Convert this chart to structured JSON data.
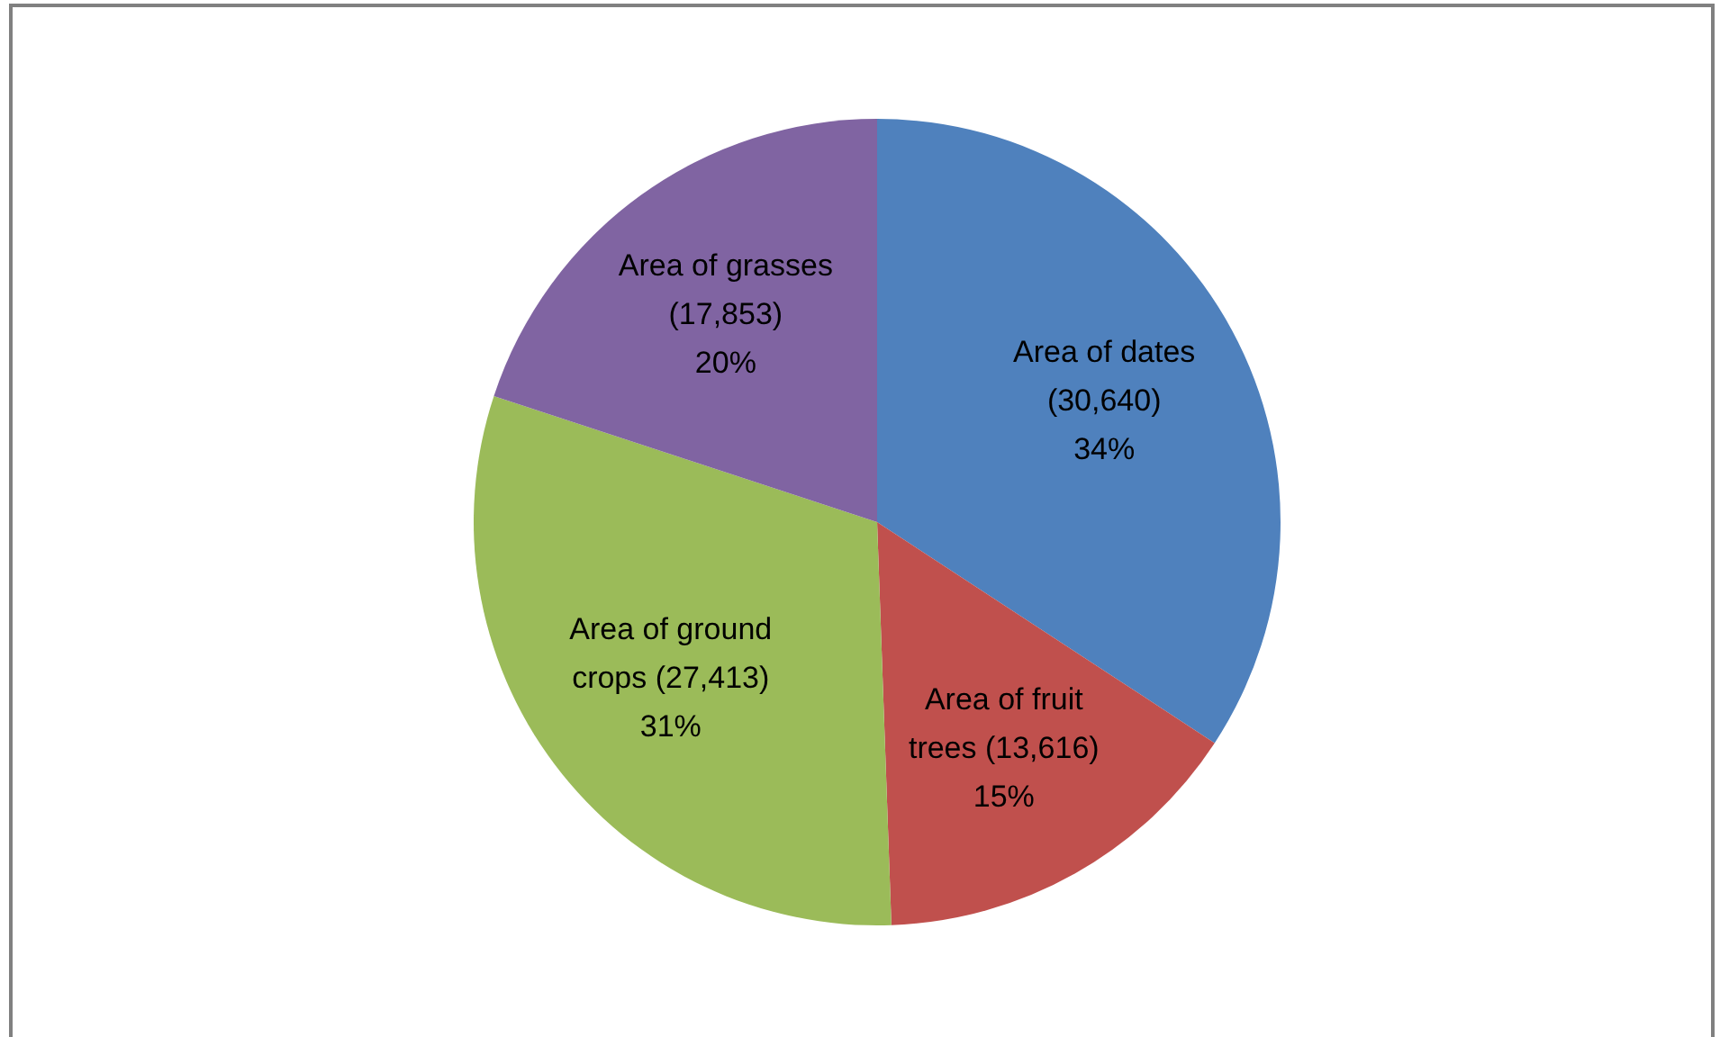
{
  "chart_data": {
    "type": "pie",
    "categories": [
      "Area of dates",
      "Area of fruit trees",
      "Area of ground crops",
      "Area of grasses"
    ],
    "values": [
      30640,
      13616,
      27413,
      17853
    ],
    "colors": [
      "#4f81bd",
      "#c0504d",
      "#9bbb59",
      "#8064a2"
    ],
    "value_labels": [
      "(30,640) 34%",
      "(13,616) 15%",
      "(27,413) 31%",
      "(17,853) 20%"
    ]
  }
}
